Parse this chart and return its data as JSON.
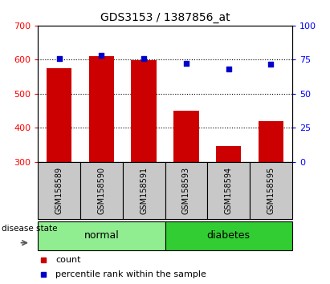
{
  "title": "GDS3153 / 1387856_at",
  "samples": [
    "GSM158589",
    "GSM158590",
    "GSM158591",
    "GSM158593",
    "GSM158594",
    "GSM158595"
  ],
  "counts": [
    575,
    610,
    598,
    450,
    347,
    420
  ],
  "percentiles": [
    75.5,
    78,
    76,
    72,
    68,
    71.5
  ],
  "ylim_left": [
    300,
    700
  ],
  "ylim_right": [
    0,
    100
  ],
  "yticks_left": [
    300,
    400,
    500,
    600,
    700
  ],
  "yticks_right": [
    0,
    25,
    50,
    75,
    100
  ],
  "grid_values": [
    400,
    500,
    600
  ],
  "bar_color": "#cc0000",
  "dot_color": "#0000cc",
  "normal_color": "#90ee90",
  "diabetes_color": "#32cd32",
  "label_bg_color": "#c8c8c8",
  "group_labels": [
    "normal",
    "diabetes"
  ],
  "group_ranges": [
    [
      0,
      3
    ],
    [
      3,
      6
    ]
  ],
  "legend_count_label": "count",
  "legend_percentile_label": "percentile rank within the sample",
  "disease_state_label": "disease state"
}
